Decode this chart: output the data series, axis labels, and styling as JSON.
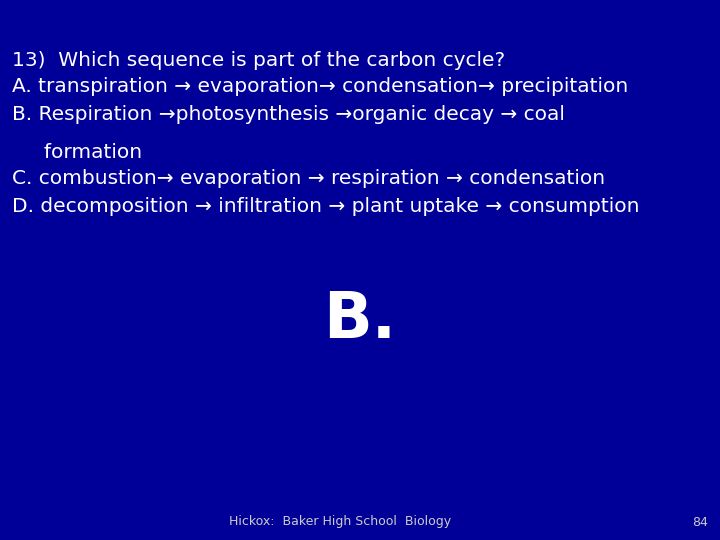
{
  "background_color": "#000099",
  "text_color": "#FFFFFF",
  "footer_color": "#CCCCCC",
  "title_line": "13)  Which sequence is part of the carbon cycle?",
  "line_A": "A. transpiration → evaporation→ condensation→ precipitation",
  "line_B": "B. Respiration →photosynthesis →organic decay → coal",
  "line_formation": "     formation",
  "line_C": "C. combustion→ evaporation → respiration → condensation",
  "line_D": "D. decomposition → infiltration → plant uptake → consumption",
  "answer": "B.",
  "footer": "Hickox:  Baker High School  Biology",
  "page_num": "84",
  "body_fontsize": 14.5,
  "answer_fontsize": 46,
  "footer_fontsize": 9
}
